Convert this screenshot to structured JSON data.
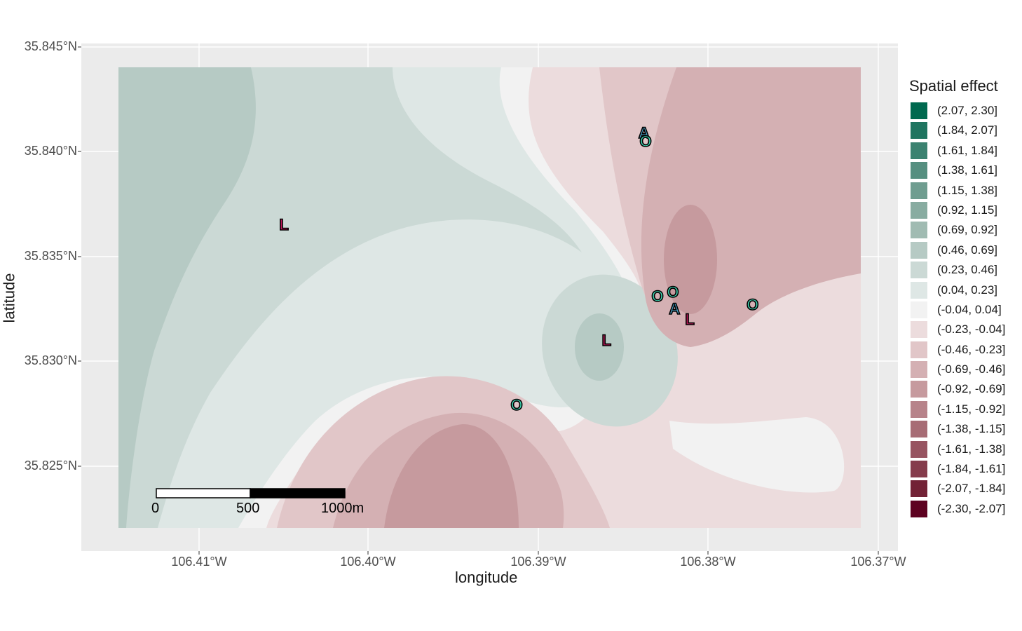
{
  "map": {
    "x_axis": {
      "title": "longitude",
      "ticks": [
        "106.41°W",
        "106.40°W",
        "106.39°W",
        "106.38°W",
        "106.37°W"
      ]
    },
    "y_axis": {
      "title": "latitude",
      "ticks": [
        "35.845°N",
        "35.840°N",
        "35.835°N",
        "35.830°N",
        "35.825°N"
      ]
    },
    "extent": {
      "lon_min": -106.4148,
      "lon_max": -106.3708,
      "lat_min": 35.8222,
      "lat_max": 35.844
    },
    "panel_background": "#ebebeb",
    "legend": {
      "title": "Spatial effect",
      "items": [
        {
          "label": "(2.07, 2.30]",
          "color": "#00694f"
        },
        {
          "label": "(1.84, 2.07]",
          "color": "#1f7560"
        },
        {
          "label": "(1.61, 1.84]",
          "color": "#3b8270"
        },
        {
          "label": "(1.38, 1.61]",
          "color": "#568f80"
        },
        {
          "label": "(1.15, 1.38]",
          "color": "#6f9d90"
        },
        {
          "label": "(0.92, 1.15]",
          "color": "#88aca1"
        },
        {
          "label": "(0.69, 0.92]",
          "color": "#a0bbb2"
        },
        {
          "label": "(0.46, 0.69]",
          "color": "#b6cac4"
        },
        {
          "label": "(0.23, 0.46]",
          "color": "#cbd9d5"
        },
        {
          "label": "(0.04, 0.23]",
          "color": "#dee7e5"
        },
        {
          "label": "(-0.04, 0.04]",
          "color": "#f2f2f2"
        },
        {
          "label": "(-0.23, -0.04]",
          "color": "#ecdcdd"
        },
        {
          "label": "(-0.46, -0.23]",
          "color": "#e1c6c8"
        },
        {
          "label": "(-0.69, -0.46]",
          "color": "#d4b0b3"
        },
        {
          "label": "(-0.92, -0.69]",
          "color": "#c69a9e"
        },
        {
          "label": "(-1.15, -0.92]",
          "color": "#b7838a"
        },
        {
          "label": "(-1.38, -1.15]",
          "color": "#a76c75"
        },
        {
          "label": "(-1.61, -1.38]",
          "color": "#975461"
        },
        {
          "label": "(-1.84, -1.61]",
          "color": "#853c4c"
        },
        {
          "label": "(-2.07, -1.84]",
          "color": "#722236"
        },
        {
          "label": "(-2.30, -2.07]",
          "color": "#5e0221"
        }
      ]
    },
    "scale_bar": {
      "labels": [
        "0",
        "500",
        "1000m"
      ]
    },
    "markers": [
      {
        "label": "A",
        "lon": -106.3838,
        "lat": 35.8409,
        "color": "#4aa3c8"
      },
      {
        "label": "O",
        "lon": -106.3837,
        "lat": 35.8405,
        "color": "#3ed3b0"
      },
      {
        "label": "L",
        "lon": -106.405,
        "lat": 35.8365,
        "color": "#c2185b"
      },
      {
        "label": "O",
        "lon": -106.383,
        "lat": 35.8331,
        "color": "#3ed3b0"
      },
      {
        "label": "O",
        "lon": -106.3821,
        "lat": 35.8333,
        "color": "#3ed3b0"
      },
      {
        "label": "A",
        "lon": -106.382,
        "lat": 35.8325,
        "color": "#4aa3c8"
      },
      {
        "label": "L",
        "lon": -106.3811,
        "lat": 35.832,
        "color": "#c2185b"
      },
      {
        "label": "O",
        "lon": -106.3774,
        "lat": 35.8327,
        "color": "#3ed3b0"
      },
      {
        "label": "L",
        "lon": -106.386,
        "lat": 35.831,
        "color": "#c2185b"
      },
      {
        "label": "O",
        "lon": -106.3913,
        "lat": 35.8279,
        "color": "#3ed3b0"
      }
    ]
  }
}
